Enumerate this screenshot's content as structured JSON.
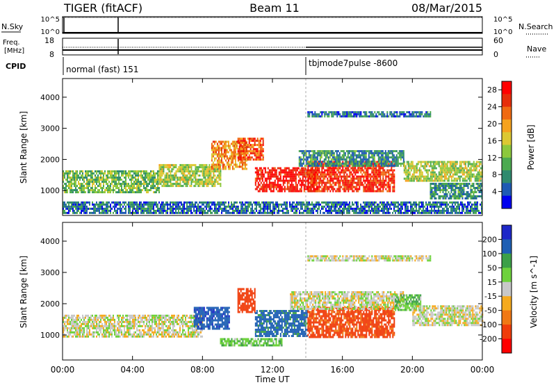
{
  "header": {
    "radar": "TIGER (fitACF)",
    "beam": "Beam 11",
    "date": "08/Mar/2015"
  },
  "strips": {
    "nsky": {
      "label": "N.Sky",
      "ticks": [
        "10^5",
        "10^0"
      ]
    },
    "nsearch": {
      "label": "N.Search",
      "ticks": [
        "10^5",
        "10^0"
      ]
    },
    "freq": {
      "label_line1": "Freq.",
      "label_line2": "[MHz]",
      "ticks": [
        "18",
        "8"
      ]
    },
    "nave": {
      "label": "Nave",
      "ticks": [
        "60",
        "0"
      ]
    },
    "cpid": {
      "label": "CPID",
      "modes": [
        {
          "name": "normal (fast) 151",
          "start_hour": 0
        },
        {
          "name": "tbjmode7pulse -8600",
          "start_hour": 14
        }
      ]
    }
  },
  "chart_data": [
    {
      "type": "heatmap",
      "title": "",
      "xlabel": "Time UT",
      "ylabel": "Slant Range [km]",
      "xlim": [
        0,
        24
      ],
      "ylim": [
        200,
        4600
      ],
      "x_ticks": [
        "00:00",
        "04:00",
        "08:00",
        "12:00",
        "16:00",
        "20:00",
        "00:00"
      ],
      "y_ticks": [
        1000,
        2000,
        3000,
        4000
      ],
      "colorbar": {
        "label": "Power [dB]",
        "ticks": [
          4,
          8,
          12,
          16,
          20,
          24,
          28
        ],
        "range": [
          0,
          30
        ],
        "colors": [
          "#0000ee",
          "#1e5ab4",
          "#2f8a6e",
          "#4caa50",
          "#8cc83c",
          "#dcc832",
          "#f5a21e",
          "#f06a12",
          "#e62d0a",
          "#ff0000"
        ]
      },
      "echo_regions": [
        {
          "t0": 0.0,
          "t1": 5.5,
          "r0": 950,
          "r1": 1650,
          "value": 12
        },
        {
          "t0": 5.5,
          "t1": 9.0,
          "r0": 1150,
          "r1": 1850,
          "value": 14
        },
        {
          "t0": 8.5,
          "t1": 10.5,
          "r0": 1700,
          "r1": 2600,
          "value": 20
        },
        {
          "t0": 10.0,
          "t1": 11.5,
          "r0": 2000,
          "r1": 2700,
          "value": 24
        },
        {
          "t0": 11.0,
          "t1": 14.5,
          "r0": 950,
          "r1": 1750,
          "value": 28
        },
        {
          "t0": 14.0,
          "t1": 19.0,
          "r0": 950,
          "r1": 1950,
          "value": 26
        },
        {
          "t0": 13.5,
          "t1": 19.5,
          "r0": 1800,
          "r1": 2300,
          "value": 8
        },
        {
          "t0": 14.0,
          "t1": 21.0,
          "r0": 3400,
          "r1": 3550,
          "value": 6
        },
        {
          "t0": 19.5,
          "t1": 24.0,
          "r0": 1300,
          "r1": 1950,
          "value": 14
        },
        {
          "t0": 21.0,
          "t1": 24.0,
          "r0": 750,
          "r1": 1250,
          "value": 8
        },
        {
          "t0": 0.0,
          "t1": 24.0,
          "r0": 250,
          "r1": 650,
          "value": 6
        }
      ]
    },
    {
      "type": "heatmap",
      "title": "",
      "xlabel": "Time UT",
      "ylabel": "Slant Range [km]",
      "xlim": [
        0,
        24
      ],
      "ylim": [
        200,
        4600
      ],
      "x_ticks": [
        "00:00",
        "04:00",
        "08:00",
        "12:00",
        "16:00",
        "20:00",
        "00:00"
      ],
      "y_ticks": [
        1000,
        2000,
        3000,
        4000
      ],
      "colorbar": {
        "label": "Velocity [m s^-1]",
        "ticks": [
          200,
          100,
          50,
          15,
          -15,
          -50,
          -100,
          -200
        ],
        "colors": [
          "#1e28c8",
          "#1e5fb4",
          "#3ca048",
          "#6ed23c",
          "#c8c8c8",
          "#f5aa1e",
          "#f07814",
          "#f03c0a",
          "#ff0000"
        ]
      },
      "echo_regions": [
        {
          "t0": 0.0,
          "t1": 8.0,
          "r0": 950,
          "r1": 1650,
          "value": 0
        },
        {
          "t0": 7.5,
          "t1": 9.5,
          "r0": 1200,
          "r1": 1900,
          "value": 180
        },
        {
          "t0": 10.0,
          "t1": 11.0,
          "r0": 1700,
          "r1": 2500,
          "value": -150
        },
        {
          "t0": 11.0,
          "t1": 14.0,
          "r0": 950,
          "r1": 1800,
          "value": 120
        },
        {
          "t0": 14.0,
          "t1": 19.0,
          "r0": 950,
          "r1": 1900,
          "value": -120
        },
        {
          "t0": 13.0,
          "t1": 19.5,
          "r0": 1800,
          "r1": 2400,
          "value": 0
        },
        {
          "t0": 14.0,
          "t1": 21.0,
          "r0": 3350,
          "r1": 3550,
          "value": 0
        },
        {
          "t0": 19.0,
          "t1": 20.5,
          "r0": 1800,
          "r1": 2300,
          "value": 40
        },
        {
          "t0": 20.0,
          "t1": 24.0,
          "r0": 1300,
          "r1": 1950,
          "value": 0
        },
        {
          "t0": 9.0,
          "t1": 12.5,
          "r0": 650,
          "r1": 900,
          "value": 40
        }
      ]
    }
  ]
}
